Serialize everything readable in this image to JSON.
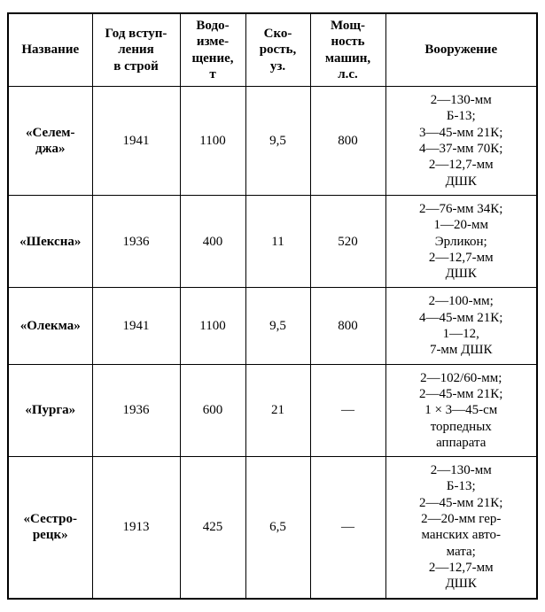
{
  "table": {
    "columns": [
      "Название",
      "Год вступ-\nления\nв строй",
      "Водо-\nизме-\nщение,\nт",
      "Ско-\nрость,\nуз.",
      "Мощ-\nность\nмашин,\nл.с.",
      "Вооружение"
    ],
    "rows": [
      {
        "name": "«Селем-\nджа»",
        "year": "1941",
        "disp": "1100",
        "speed": "9,5",
        "power": "800",
        "arm": "2—130-мм\nБ-13;\n3—45-мм 21К;\n4—37-мм 70К;\n2—12,7-мм\nДШК"
      },
      {
        "name": "«Шексна»",
        "year": "1936",
        "disp": "400",
        "speed": "11",
        "power": "520",
        "arm": "2—76-мм 34К;\n1—20-мм\nЭрликон;\n2—12,7-мм\nДШК"
      },
      {
        "name": "«Олекма»",
        "year": "1941",
        "disp": "1100",
        "speed": "9,5",
        "power": "800",
        "arm": "2—100-мм;\n4—45-мм 21К;\n1—12,\n7-мм ДШК"
      },
      {
        "name": "«Пурга»",
        "year": "1936",
        "disp": "600",
        "speed": "21",
        "power": "—",
        "arm": "2—102/60-мм;\n2—45-мм 21К;\n1 × 3—45-см\nторпедных\nаппарата"
      },
      {
        "name": "«Сестро-\nрецк»",
        "year": "1913",
        "disp": "425",
        "speed": "6,5",
        "power": "—",
        "arm": "2—130-мм\nБ-13;\n2—45-мм 21К;\n2—20-мм гер-\nманских авто-\nмата;\n2—12,7-мм\nДШК"
      }
    ]
  }
}
